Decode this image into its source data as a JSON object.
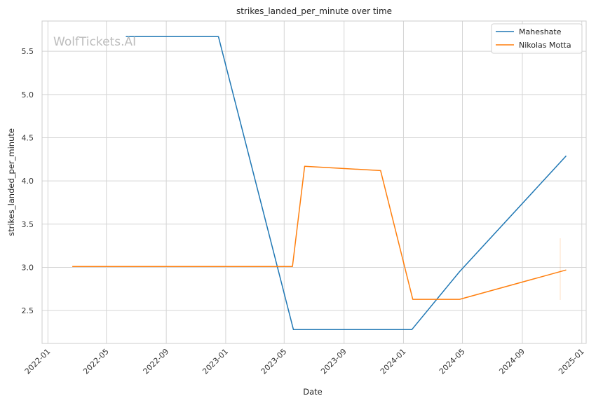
{
  "chart_data": {
    "type": "line",
    "title": "strikes_landed_per_minute over time",
    "xlabel": "Date",
    "ylabel": "strikes_landed_per_minute",
    "watermark": "WolfTickets.AI",
    "x_ticks": [
      "2022-01",
      "2022-05",
      "2022-09",
      "2023-01",
      "2023-05",
      "2023-09",
      "2024-01",
      "2024-05",
      "2024-09",
      "2025-01"
    ],
    "y_ticks": [
      "2.5",
      "3.0",
      "3.5",
      "4.0",
      "4.5",
      "5.0",
      "5.5"
    ],
    "xlim": [
      "2021-12-20",
      "2025-01-10"
    ],
    "ylim": [
      2.12,
      5.85
    ],
    "grid": true,
    "legend_position": "top-right",
    "series": [
      {
        "name": "Maheshate",
        "color": "#1f77b4",
        "points": [
          {
            "x": "2022-06-10",
            "y": 5.67
          },
          {
            "x": "2022-12-17",
            "y": 5.67
          },
          {
            "x": "2023-05-20",
            "y": 2.28
          },
          {
            "x": "2024-01-18",
            "y": 2.28
          },
          {
            "x": "2024-04-25",
            "y": 2.95
          },
          {
            "x": "2024-11-30",
            "y": 4.29
          }
        ]
      },
      {
        "name": "Nikolas Motta",
        "color": "#ff7f0e",
        "points": [
          {
            "x": "2022-02-20",
            "y": 3.01
          },
          {
            "x": "2023-05-18",
            "y": 3.01
          },
          {
            "x": "2023-06-12",
            "y": 4.17
          },
          {
            "x": "2023-11-15",
            "y": 4.12
          },
          {
            "x": "2024-01-20",
            "y": 2.63
          },
          {
            "x": "2024-04-25",
            "y": 2.63
          },
          {
            "x": "2024-11-30",
            "y": 2.97
          }
        ]
      }
    ]
  }
}
